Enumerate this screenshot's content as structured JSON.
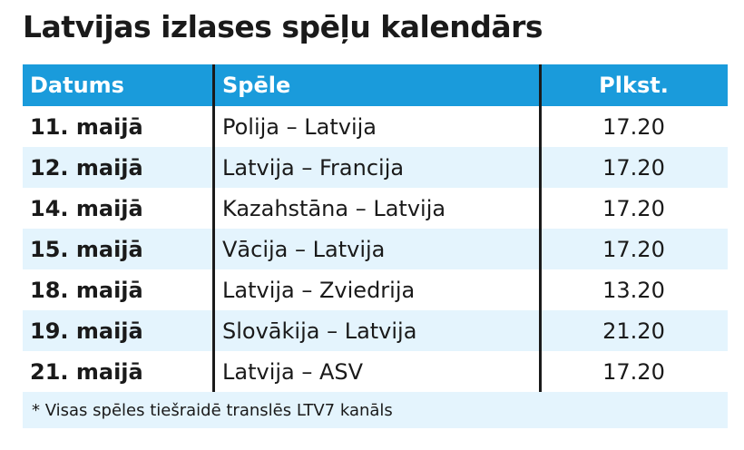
{
  "title": "Latvijas izlases spēļu kalendārs",
  "table": {
    "headers": {
      "date": "Datums",
      "game": "Spēle",
      "time": "Plkst."
    },
    "rows": [
      {
        "date": "11. maijā",
        "game": "Polija – Latvija",
        "time": "17.20"
      },
      {
        "date": "12. maijā",
        "game": "Latvija – Francija",
        "time": "17.20"
      },
      {
        "date": "14. maijā",
        "game": "Kazahstāna – Latvija",
        "time": "17.20"
      },
      {
        "date": "15. maijā",
        "game": "Vācija – Latvija",
        "time": "17.20"
      },
      {
        "date": "18. maijā",
        "game": "Latvija – Zviedrija",
        "time": "13.20"
      },
      {
        "date": "19. maijā",
        "game": "Slovākija – Latvija",
        "time": "21.20"
      },
      {
        "date": "21. maijā",
        "game": "Latvija – ASV",
        "time": "17.20"
      }
    ]
  },
  "footnote": "* Visas spēles tiešraidē translēs LTV7 kanāls",
  "colors": {
    "header_bg": "#1a9bdb",
    "alt_row_bg": "#e4f4fd",
    "text": "#1a1a1a"
  }
}
